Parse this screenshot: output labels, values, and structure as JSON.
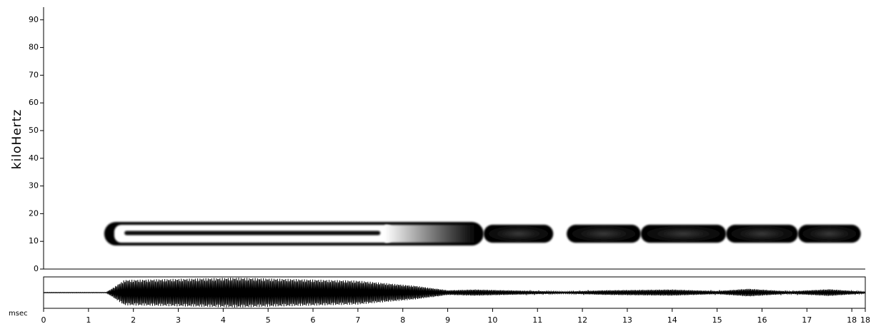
{
  "chart_data": [
    {
      "type": "heatmap",
      "name": "spectrogram",
      "xlabel": "",
      "ylabel": "kiloHertz",
      "xlim": [
        0,
        18.3
      ],
      "ylim": [
        0,
        92
      ],
      "yticks": [
        0,
        10,
        20,
        30,
        40,
        50,
        60,
        70,
        80,
        90
      ],
      "ytick_labels": [
        "0",
        "10",
        "20",
        "30",
        "40",
        "50",
        "60",
        "70",
        "80",
        "90"
      ],
      "grid": false,
      "colormap": "black-on-white intensity",
      "segments": [
        {
          "t_start": 1.35,
          "t_end": 9.8,
          "f_low": 8.5,
          "f_high": 17.0
        },
        {
          "t_start": 9.8,
          "t_end": 11.35,
          "f_low": 9.5,
          "f_high": 16.0
        },
        {
          "t_start": 11.65,
          "t_end": 13.3,
          "f_low": 9.5,
          "f_high": 16.0
        },
        {
          "t_start": 13.3,
          "t_end": 15.2,
          "f_low": 9.5,
          "f_high": 16.0
        },
        {
          "t_start": 15.2,
          "t_end": 16.8,
          "f_low": 9.5,
          "f_high": 16.0
        },
        {
          "t_start": 16.8,
          "t_end": 18.2,
          "f_low": 9.5,
          "f_high": 16.0
        }
      ],
      "peaks": [
        {
          "t_start": 1.8,
          "t_end": 7.5,
          "f_center": 13.0
        }
      ]
    },
    {
      "type": "line",
      "name": "waveform",
      "xunit": "msec",
      "xticks": [
        0,
        1,
        2,
        3,
        4,
        5,
        6,
        7,
        8,
        9,
        10,
        11,
        12,
        13,
        14,
        15,
        16,
        17,
        18
      ],
      "xtick_labels": [
        "0",
        "1",
        "2",
        "3",
        "4",
        "5",
        "6",
        "7",
        "8",
        "9",
        "10",
        "11",
        "12",
        "13",
        "14",
        "15",
        "16",
        "17",
        "18"
      ],
      "end_label": "18",
      "xlim": [
        0,
        18.3
      ],
      "envelope": [
        {
          "t": 0.0,
          "amp": 0.02
        },
        {
          "t": 1.4,
          "amp": 0.02
        },
        {
          "t": 1.8,
          "amp": 0.85
        },
        {
          "t": 4.3,
          "amp": 1.0
        },
        {
          "t": 7.0,
          "amp": 0.8
        },
        {
          "t": 8.3,
          "amp": 0.45
        },
        {
          "t": 9.0,
          "amp": 0.15
        },
        {
          "t": 9.6,
          "amp": 0.2
        },
        {
          "t": 11.0,
          "amp": 0.1
        },
        {
          "t": 11.6,
          "amp": 0.06
        },
        {
          "t": 12.5,
          "amp": 0.15
        },
        {
          "t": 14.0,
          "amp": 0.2
        },
        {
          "t": 15.0,
          "amp": 0.1
        },
        {
          "t": 15.7,
          "amp": 0.25
        },
        {
          "t": 16.6,
          "amp": 0.08
        },
        {
          "t": 17.5,
          "amp": 0.22
        },
        {
          "t": 18.3,
          "amp": 0.05
        }
      ]
    }
  ]
}
